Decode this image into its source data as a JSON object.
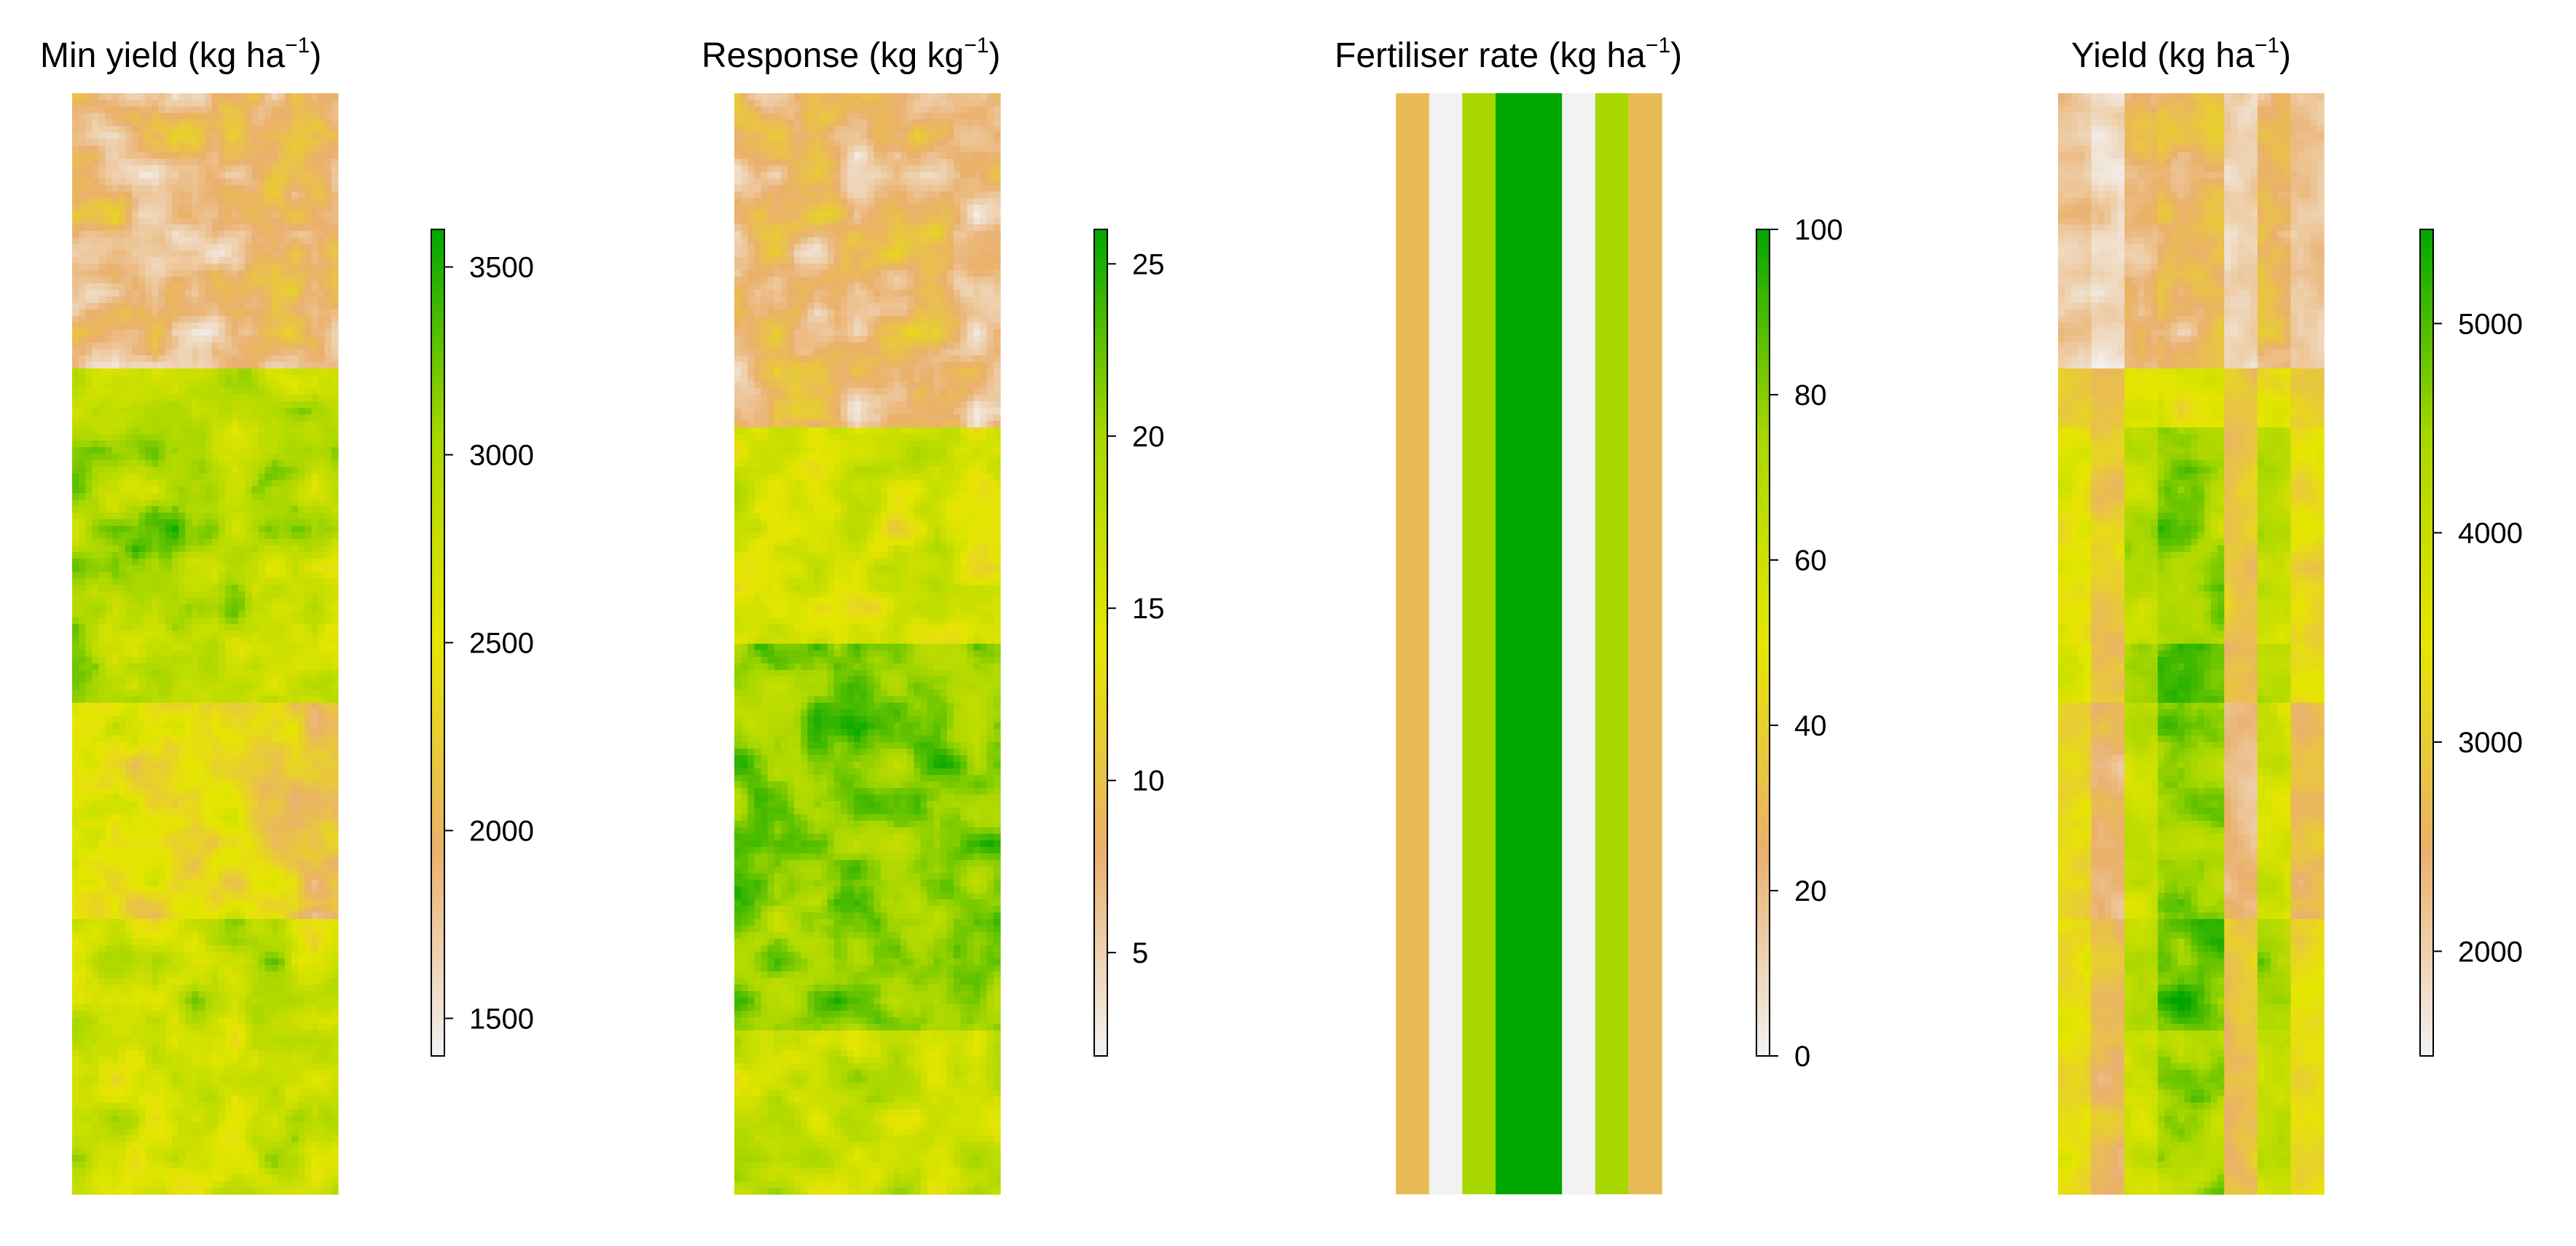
{
  "chart_data": [
    {
      "type": "heatmap",
      "title": "Min yield (kg ha−1)",
      "title_main": "Min yield (kg ha",
      "title_sup": "−1",
      "title_close": ")",
      "legend_ticks": [
        1500,
        2000,
        2500,
        3000,
        3500
      ],
      "value_range": [
        1400,
        3600
      ],
      "palette": [
        "#f2f2f2",
        "#eab06c",
        "#e6e600",
        "#a8d700",
        "#00a600"
      ],
      "grid": false,
      "legend_position": "right"
    },
    {
      "type": "heatmap",
      "title": "Response (kg kg−1)",
      "title_main": "Response (kg kg",
      "title_sup": "−1",
      "title_close": ")",
      "legend_ticks": [
        5,
        10,
        15,
        20,
        25
      ],
      "value_range": [
        2,
        26
      ],
      "palette": [
        "#f2f2f2",
        "#eab06c",
        "#e6e600",
        "#a8d700",
        "#00a600"
      ],
      "grid": false,
      "legend_position": "right"
    },
    {
      "type": "heatmap",
      "title": "Fertiliser rate (kg ha−1)",
      "title_main": "Fertiliser rate (kg ha",
      "title_sup": "−1",
      "title_close": ")",
      "legend_ticks": [
        0,
        20,
        40,
        60,
        80,
        100
      ],
      "value_range": [
        0,
        100
      ],
      "palette": [
        "#f2f2f2",
        "#eab06c",
        "#e6e600",
        "#a8d700",
        "#00a600"
      ],
      "grid": false,
      "legend_position": "right",
      "strip_rates": [
        30,
        0,
        75,
        100,
        100,
        0,
        75,
        30
      ]
    },
    {
      "type": "heatmap",
      "title": "Yield (kg ha−1)",
      "title_main": "Yield (kg ha",
      "title_sup": "−1",
      "title_close": ")",
      "legend_ticks": [
        2000,
        3000,
        4000,
        5000
      ],
      "value_range": [
        1500,
        5450
      ],
      "palette": [
        "#f2f2f2",
        "#eab06c",
        "#e6e600",
        "#a8d700",
        "#00a600"
      ],
      "grid": false,
      "legend_position": "right"
    }
  ]
}
